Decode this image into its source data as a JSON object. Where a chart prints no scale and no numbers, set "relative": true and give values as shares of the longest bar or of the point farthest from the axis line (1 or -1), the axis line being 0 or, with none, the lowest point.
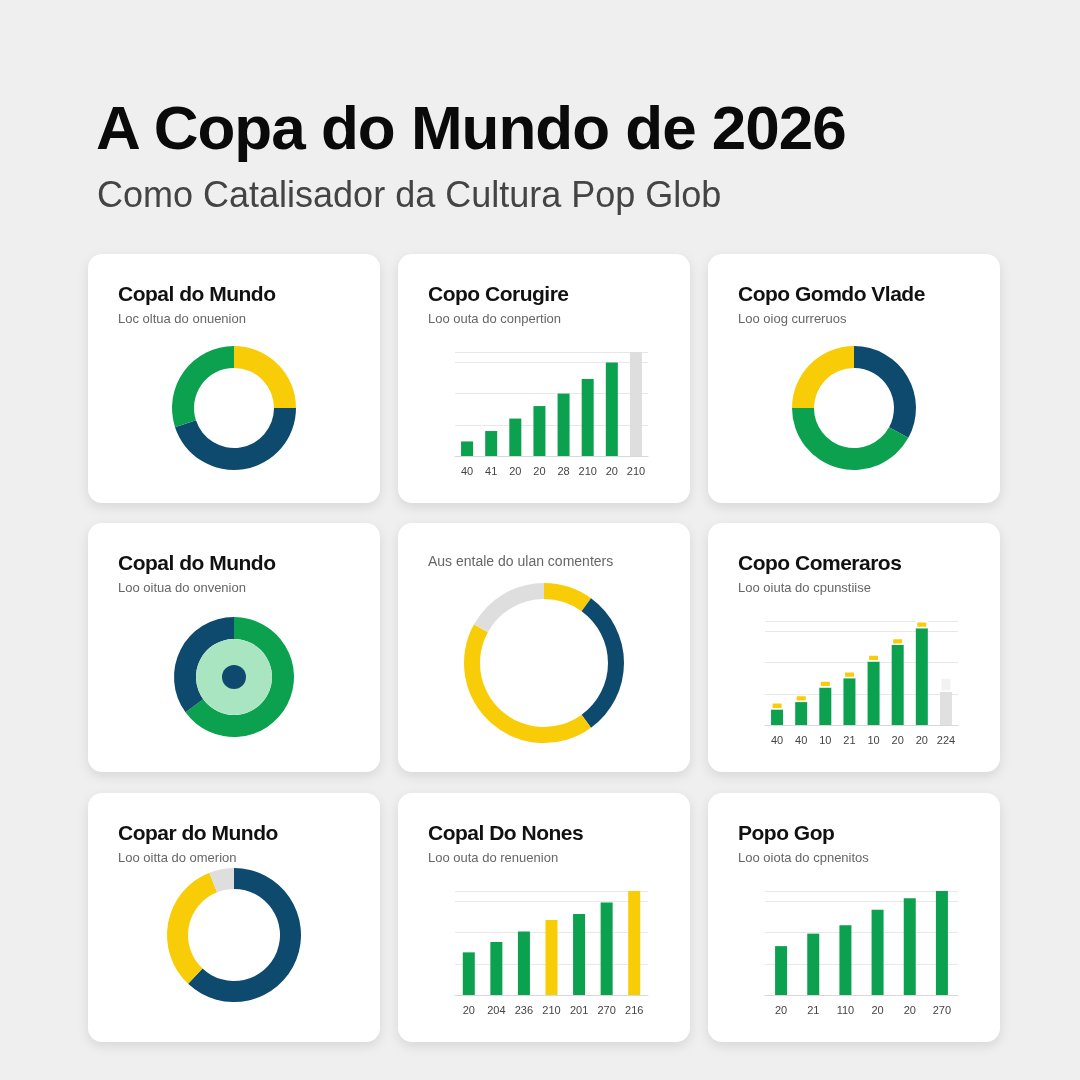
{
  "chart_data": [
    {
      "type": "other",
      "title": "A Copa do Mundo de 2026",
      "subtitle": "Como Catalisador da Cultura Pop Glob"
    },
    {
      "type": "donut",
      "title": "Copal do Mundo",
      "subtitle": "Loc oltua do onuenion",
      "categories": [
        null,
        null,
        null
      ],
      "values": [
        25,
        45,
        30
      ],
      "colors": [
        "#f8cd07",
        "#0e4a6e",
        "#0ba14f"
      ]
    },
    {
      "type": "bar",
      "title": "Copo Corugire",
      "subtitle": "Loo outa do conpertion",
      "relative": true,
      "categories": [
        "40",
        "41",
        "20",
        "20",
        "28",
        "210",
        "20",
        "210"
      ],
      "values": [
        0.14,
        0.24,
        0.36,
        0.48,
        0.6,
        0.74,
        0.9,
        1
      ],
      "colors": [
        "#0ba14f",
        "#0ba14f",
        "#0ba14f",
        "#0ba14f",
        "#0ba14f",
        "#0ba14f",
        "#0ba14f",
        "#dedede"
      ],
      "grid": "y"
    },
    {
      "type": "donut",
      "title": "Copo Gomdo Vlade",
      "subtitle": "Loo oiog curreruos",
      "categories": [
        null,
        null,
        null
      ],
      "values": [
        33,
        42,
        25
      ],
      "colors": [
        "#0e4a6e",
        "#0ba14f",
        "#f8cd07"
      ]
    },
    {
      "type": "donut",
      "title": "Copal do Mundo",
      "subtitle": "Loo oitua do onvenion",
      "categories": [
        null,
        null
      ],
      "values": [
        65,
        35
      ],
      "colors": [
        "#0ba14f",
        "#0e4a6e"
      ]
    },
    {
      "type": "donut",
      "subtitle": "Aus entale do ulan comenters",
      "categories": [
        null,
        null,
        null,
        null
      ],
      "values": [
        10,
        30,
        43,
        17
      ],
      "colors": [
        "#f8cd07",
        "#0e4a6e",
        "#f8cd07",
        "#dedede"
      ]
    },
    {
      "type": "bar",
      "title": "Copo Comeraros",
      "subtitle": "Loo oiuta do cpunstiise",
      "relative": true,
      "categories": [
        "40",
        "40",
        "10",
        "21",
        "10",
        "20",
        "20",
        "224"
      ],
      "stacked": true,
      "series": [
        {
          "values": [
            0.15,
            0.22,
            0.36,
            0.45,
            0.61,
            0.77,
            0.93,
            0.32
          ],
          "colors": [
            "#0ba14f",
            "#0ba14f",
            "#0ba14f",
            "#0ba14f",
            "#0ba14f",
            "#0ba14f",
            "#0ba14f",
            "#e0e0e0"
          ]
        },
        {
          "values": [
            0.07,
            0.07,
            0.07,
            0.07,
            0.07,
            0.07,
            0.07,
            0.14
          ],
          "colors": [
            "#f8cd07",
            "#f8cd07",
            "#f8cd07",
            "#f8cd07",
            "#f8cd07",
            "#f8cd07",
            "#f8cd07",
            "#f2f2f2"
          ]
        }
      ],
      "grid": "y"
    },
    {
      "type": "donut",
      "title": "Copar do Mundo",
      "subtitle": "Loo oitta do omerion",
      "categories": [
        null,
        null,
        null
      ],
      "values": [
        62,
        32,
        6
      ],
      "colors": [
        "#0e4a6e",
        "#f8cd07",
        "#dedede"
      ]
    },
    {
      "type": "bar",
      "title": "Copal Do Nones",
      "subtitle": "Loo outa do renuenion",
      "relative": true,
      "categories": [
        "20",
        "204",
        "236",
        "210",
        "201",
        "270",
        "216"
      ],
      "values": [
        0.41,
        0.51,
        0.61,
        0.72,
        0.78,
        0.89,
        1
      ],
      "colors": [
        "#0ba14f",
        "#0ba14f",
        "#0ba14f",
        "#f8cd07",
        "#0ba14f",
        "#0ba14f",
        "#f8cd07"
      ],
      "grid": "y"
    },
    {
      "type": "bar",
      "title": "Popo Gop",
      "subtitle": "Loo oiota do cpnenitos",
      "relative": true,
      "categories": [
        "20",
        "21",
        "110",
        "20",
        "20",
        "270"
      ],
      "values": [
        0.47,
        0.59,
        0.67,
        0.82,
        0.93,
        1
      ],
      "colors": [
        "#0ba14f",
        "#0ba14f",
        "#0ba14f",
        "#0ba14f",
        "#0ba14f",
        "#0ba14f"
      ],
      "grid": "y"
    }
  ]
}
